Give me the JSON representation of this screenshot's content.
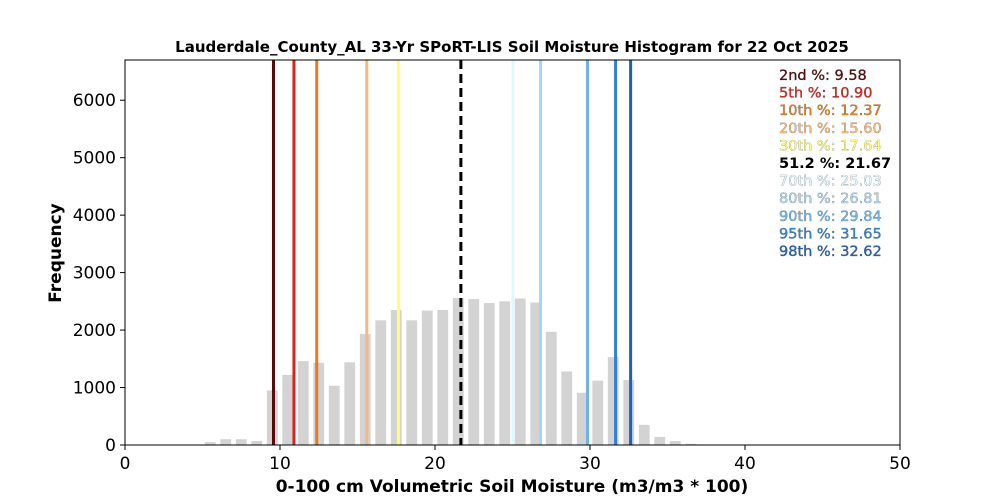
{
  "chart_data": {
    "type": "bar",
    "title": "Lauderdale_County_AL 33-Yr SPoRT-LIS Soil Moisture Histogram for 22 Oct 2025",
    "xlabel": "0-100 cm Volumetric Soil Moisture (m3/m3 * 100)",
    "ylabel": "Frequency",
    "xlim": [
      0,
      50
    ],
    "ylim": [
      0,
      6700
    ],
    "x_ticks": [
      0,
      10,
      20,
      30,
      40,
      50
    ],
    "y_ticks": [
      0,
      1000,
      2000,
      3000,
      4000,
      5000,
      6000
    ],
    "bar_color": "#d3d3d3",
    "bin_width": 1.0,
    "bins": [
      {
        "x": 5.5,
        "value": 50
      },
      {
        "x": 6.5,
        "value": 100
      },
      {
        "x": 7.5,
        "value": 100
      },
      {
        "x": 8.5,
        "value": 70
      },
      {
        "x": 9.5,
        "value": 950
      },
      {
        "x": 10.5,
        "value": 1220
      },
      {
        "x": 11.5,
        "value": 1460
      },
      {
        "x": 12.5,
        "value": 1430
      },
      {
        "x": 13.5,
        "value": 1030
      },
      {
        "x": 14.5,
        "value": 1440
      },
      {
        "x": 15.5,
        "value": 1930
      },
      {
        "x": 16.5,
        "value": 2170
      },
      {
        "x": 17.5,
        "value": 2350
      },
      {
        "x": 18.5,
        "value": 2170
      },
      {
        "x": 19.5,
        "value": 2340
      },
      {
        "x": 20.5,
        "value": 2350
      },
      {
        "x": 21.5,
        "value": 2560
      },
      {
        "x": 22.5,
        "value": 2540
      },
      {
        "x": 23.5,
        "value": 2470
      },
      {
        "x": 24.5,
        "value": 2500
      },
      {
        "x": 25.5,
        "value": 2550
      },
      {
        "x": 26.5,
        "value": 2480
      },
      {
        "x": 27.5,
        "value": 1970
      },
      {
        "x": 28.5,
        "value": 1280
      },
      {
        "x": 29.5,
        "value": 910
      },
      {
        "x": 30.5,
        "value": 1120
      },
      {
        "x": 31.5,
        "value": 1530
      },
      {
        "x": 32.5,
        "value": 1130
      },
      {
        "x": 33.5,
        "value": 350
      },
      {
        "x": 34.5,
        "value": 140
      },
      {
        "x": 35.5,
        "value": 70
      },
      {
        "x": 36.5,
        "value": 20
      }
    ],
    "percentile_lines": [
      {
        "label": "2nd %: 9.58",
        "value": 9.58,
        "color": "#5a0a0a",
        "dashed": false
      },
      {
        "label": "5th %: 10.90",
        "value": 10.9,
        "color": "#e0201a",
        "dashed": false
      },
      {
        "label": "10th %: 12.37",
        "value": 12.37,
        "color": "#e87a1c",
        "dashed": false
      },
      {
        "label": "20th %: 15.60",
        "value": 15.6,
        "color": "#f9b77a",
        "dashed": false
      },
      {
        "label": "30th %: 17.64",
        "value": 17.64,
        "color": "#ffff70",
        "dashed": false
      },
      {
        "label": "51.2 %: 21.67",
        "value": 21.67,
        "color": "#000000",
        "dashed": true
      },
      {
        "label": "70th %: 25.03",
        "value": 25.03,
        "color": "#e0f8ff",
        "dashed": false
      },
      {
        "label": "80th %: 26.81",
        "value": 26.81,
        "color": "#a9d3f4",
        "dashed": false
      },
      {
        "label": "90th %: 29.84",
        "value": 29.84,
        "color": "#6cb2ee",
        "dashed": false
      },
      {
        "label": "95th %: 31.65",
        "value": 31.65,
        "color": "#2f7fdc",
        "dashed": false
      },
      {
        "label": "98th %: 32.62",
        "value": 32.62,
        "color": "#1d5fc0",
        "dashed": false
      }
    ],
    "legend_placement": "top-right",
    "grid": false
  }
}
